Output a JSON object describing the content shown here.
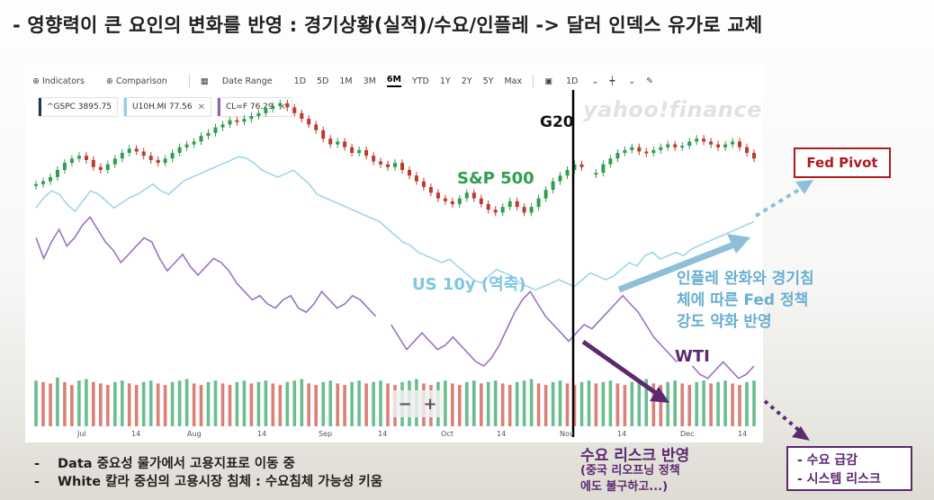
{
  "headline": "- 영향력이 큰 요인의 변화를 반영 : 경기상황(실적)/수요/인플레 -> 달러 인덱스 유가로 교체",
  "toolbar": {
    "indicators": "Indicators",
    "comparison": "Comparison",
    "date_range": "Date Range",
    "ranges": [
      "1D",
      "5D",
      "1M",
      "3M",
      "6M",
      "YTD",
      "1Y",
      "2Y",
      "5Y",
      "Max"
    ],
    "active_range": "6M",
    "interval": "1D"
  },
  "chips": [
    {
      "label": "^GSPC 3895.75",
      "color": "#1d3b4a",
      "closable": false
    },
    {
      "label": "U10H.MI 77.56",
      "color": "#8fd0ea",
      "closable": true
    },
    {
      "label": "CL=F 76.29",
      "color": "#8e63b5",
      "closable": true
    }
  ],
  "watermark": "yahoo!finance",
  "labels": {
    "g20": "G20",
    "sp500": "S&P 500",
    "us10y": "US 10y (역축)",
    "wti": "WTI"
  },
  "annotations": {
    "blue": [
      "인플레 완화와 경기침",
      "체에 따른 Fed 정책",
      "강도 약화 반영"
    ],
    "demand": "수요 리스크 반영",
    "demand_sub": [
      "(중국 리오프닝 정책",
      "에도 불구하고...)"
    ],
    "fed_pivot": "Fed Pivot",
    "risk": [
      "- 수요 급감",
      "- 시스템 리스크"
    ]
  },
  "bullets": [
    "Data 중요성 물가에서 고용지표로 이동 중",
    "White 칼라 중심의 고용시장 침체 : 수요침체 가능성 키움"
  ],
  "zoom": {
    "minus": "−",
    "plus": "+"
  },
  "chart_data": {
    "type": "line",
    "x_axis": {
      "ticks": [
        "Jul",
        "14",
        "Aug",
        "14",
        "Sep",
        "14",
        "Oct",
        "14",
        "Nov",
        "14",
        "Dec",
        "14"
      ]
    },
    "series": [
      {
        "name": "^GSPC",
        "style": "candlestick",
        "up_color": "#2e9e4f",
        "down_color": "#c0392b",
        "values": [
          0.4,
          0.42,
          0.45,
          0.5,
          0.55,
          0.58,
          0.6,
          0.57,
          0.52,
          0.5,
          0.54,
          0.58,
          0.62,
          0.65,
          0.63,
          0.6,
          0.57,
          0.55,
          0.58,
          0.62,
          0.66,
          0.68,
          0.7,
          0.74,
          0.76,
          0.8,
          0.82,
          0.85,
          0.84,
          0.86,
          0.88,
          0.9,
          0.93,
          0.95,
          0.97,
          0.94,
          0.9,
          0.86,
          0.82,
          0.78,
          0.72,
          0.68,
          0.7,
          0.66,
          0.62,
          0.64,
          0.6,
          0.56,
          0.54,
          0.52,
          0.55,
          0.5,
          0.46,
          0.42,
          0.38,
          0.34,
          0.3,
          0.28,
          0.26,
          0.3,
          0.34,
          0.3,
          0.26,
          0.22,
          0.2,
          0.24,
          0.28,
          0.24,
          0.2,
          0.24,
          0.3,
          0.36,
          0.42,
          0.46,
          0.5,
          0.54,
          0.52,
          null,
          0.48,
          0.54,
          0.58,
          0.62,
          0.64,
          0.66,
          0.63,
          0.62,
          0.64,
          0.66,
          0.68,
          0.66,
          0.67,
          0.7,
          0.72,
          0.7,
          0.68,
          0.66,
          0.68,
          0.7,
          0.66,
          0.62,
          0.58
        ]
      },
      {
        "name": "U10H.MI",
        "color": "#9fd5ec",
        "values": [
          0.52,
          0.58,
          0.62,
          0.6,
          0.54,
          0.5,
          0.56,
          0.62,
          0.6,
          0.56,
          0.52,
          0.55,
          0.58,
          0.6,
          0.63,
          0.66,
          0.62,
          0.6,
          0.64,
          0.68,
          0.7,
          0.72,
          0.74,
          0.76,
          0.78,
          0.8,
          0.82,
          0.81,
          0.78,
          0.74,
          0.72,
          0.7,
          0.72,
          0.74,
          0.7,
          0.66,
          0.6,
          0.58,
          0.56,
          0.54,
          0.52,
          0.5,
          0.48,
          0.46,
          0.44,
          0.4,
          0.36,
          0.32,
          0.3,
          0.26,
          0.24,
          0.22,
          0.2,
          0.22,
          0.18,
          0.14,
          0.1,
          0.08,
          0.12,
          0.16,
          0.14,
          0.12,
          0.08,
          0.06,
          0.04,
          0.06,
          0.08,
          0.1,
          0.08,
          0.06,
          0.1,
          0.14,
          0.12,
          0.1,
          0.12,
          0.16,
          0.2,
          0.18,
          0.24,
          0.26,
          0.22,
          0.24,
          0.26,
          0.24,
          0.28,
          0.3,
          0.32,
          0.34,
          0.36,
          0.38,
          0.4,
          0.42,
          0.44
        ]
      },
      {
        "name": "CL=F",
        "color": "#9b72c4",
        "values": [
          0.72,
          0.62,
          0.7,
          0.76,
          0.68,
          0.72,
          0.78,
          0.82,
          0.76,
          0.7,
          0.66,
          0.6,
          0.64,
          0.68,
          0.72,
          0.7,
          0.62,
          0.56,
          0.6,
          0.64,
          0.58,
          0.54,
          0.58,
          0.62,
          0.6,
          0.56,
          0.5,
          0.46,
          0.42,
          0.44,
          0.4,
          0.38,
          0.42,
          0.44,
          0.38,
          0.36,
          0.4,
          0.46,
          0.42,
          0.38,
          0.4,
          0.44,
          0.42,
          0.38,
          0.34,
          null,
          0.3,
          0.24,
          0.18,
          0.22,
          0.26,
          0.22,
          0.18,
          0.2,
          0.24,
          0.2,
          0.16,
          0.12,
          0.1,
          0.14,
          0.2,
          0.28,
          0.36,
          0.42,
          0.46,
          0.4,
          0.34,
          0.3,
          0.26,
          0.22,
          0.26,
          0.3,
          0.28,
          0.32,
          0.36,
          0.4,
          0.44,
          0.4,
          0.36,
          0.3,
          0.24,
          0.2,
          0.16,
          0.12,
          null,
          0.1,
          0.06,
          0.04,
          0.08,
          0.12,
          0.08,
          0.04,
          0.06,
          0.1
        ]
      },
      {
        "name": "Volume",
        "style": "bars",
        "values": [
          0.62,
          0.6,
          0.58,
          0.66,
          0.6,
          0.56,
          0.62,
          0.64,
          0.6,
          0.58,
          0.56,
          0.6,
          0.62,
          0.58,
          0.56,
          0.6,
          0.62,
          0.58,
          0.56,
          0.6,
          0.62,
          0.64,
          0.58,
          0.56,
          0.6,
          0.62,
          0.58,
          0.56,
          0.6,
          0.62,
          0.58,
          0.6,
          0.62,
          0.58,
          0.56,
          0.6,
          0.62,
          0.64,
          0.58,
          0.56,
          0.6,
          0.62,
          0.58,
          0.56,
          0.6,
          0.62,
          0.58,
          0.6,
          0.62,
          0.58,
          0.56,
          0.6,
          0.62,
          0.64,
          0.58,
          0.56,
          0.6,
          0.62,
          0.58,
          0.56,
          0.6,
          0.62,
          0.58,
          0.6,
          0.62,
          0.58,
          0.56,
          0.6,
          0.62,
          0.64,
          0.58,
          0.56,
          0.6,
          0.62,
          0.58,
          0.56,
          0.6,
          0.62,
          0.58,
          0.6,
          0.62,
          0.58,
          0.56,
          0.6,
          0.62,
          0.64,
          0.58,
          0.56,
          0.6,
          0.62,
          0.58,
          0.56,
          0.6,
          0.62,
          0.58,
          0.6,
          0.62,
          0.58,
          0.56,
          0.6,
          0.62
        ]
      }
    ],
    "events": [
      {
        "label": "G20"
      }
    ]
  },
  "colors": {
    "sp500_label": "#2e9e4f",
    "us10y_label": "#7fc6e0",
    "wti_label": "#5b2a6e",
    "fed_pivot": "#b0191e",
    "risk_box": "#5b2a6e"
  }
}
